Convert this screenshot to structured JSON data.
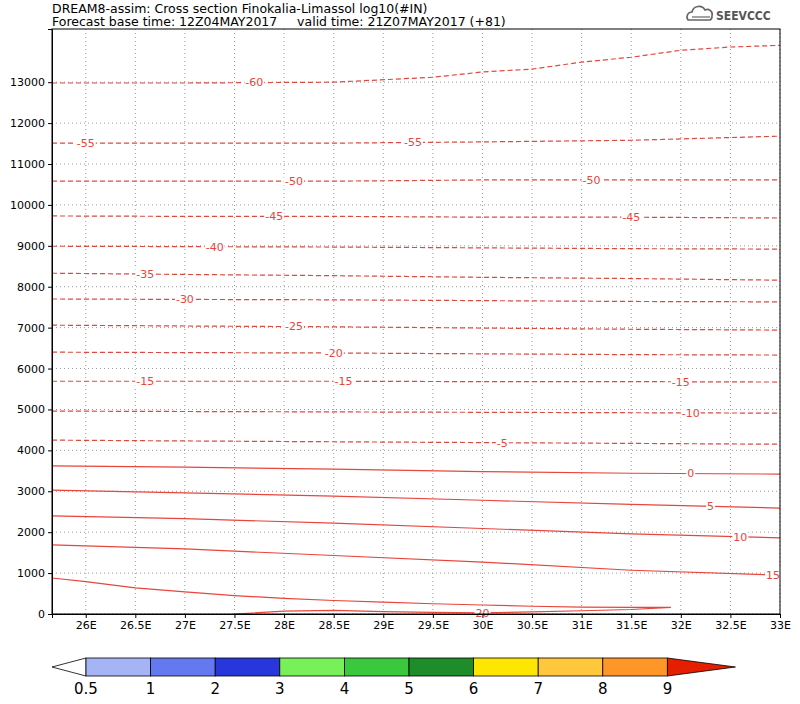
{
  "chart_data": {
    "type": "contour",
    "title": "DREAM8-assim: Cross section Finokalia-Limassol log10(#IN)",
    "subtitle": "Forecast base time: 12Z04MAY2017     valid time: 21Z07MAY2017 (+81)",
    "logo": "SEEVCCC",
    "color": "#e8453c",
    "grid": true,
    "xlim": [
      25.66,
      33
    ],
    "ylim": [
      0,
      14300
    ],
    "xticks": [
      {
        "value": 26,
        "label": "26E"
      },
      {
        "value": 26.5,
        "label": "26.5E"
      },
      {
        "value": 27,
        "label": "27E"
      },
      {
        "value": 27.5,
        "label": "27.5E"
      },
      {
        "value": 28,
        "label": "28E"
      },
      {
        "value": 28.5,
        "label": "28.5E"
      },
      {
        "value": 29,
        "label": "29E"
      },
      {
        "value": 29.5,
        "label": "29.5E"
      },
      {
        "value": 30,
        "label": "30E"
      },
      {
        "value": 30.5,
        "label": "30.5E"
      },
      {
        "value": 31,
        "label": "31E"
      },
      {
        "value": 31.5,
        "label": "31.5E"
      },
      {
        "value": 32,
        "label": "32E"
      },
      {
        "value": 32.5,
        "label": "32.5E"
      },
      {
        "value": 33,
        "label": "33E"
      }
    ],
    "yticks": [
      0,
      1000,
      2000,
      3000,
      4000,
      5000,
      6000,
      7000,
      8000,
      9000,
      10000,
      11000,
      12000,
      13000
    ],
    "contours": [
      {
        "level": -60,
        "line_style": "dashed",
        "x": [
          25.66,
          27,
          28.5,
          29.5,
          30,
          30.5,
          31,
          31.5,
          32,
          32.5,
          33
        ],
        "y": [
          12980,
          12980,
          13000,
          13120,
          13250,
          13320,
          13490,
          13610,
          13780,
          13860,
          13900
        ],
        "label_x": [
          27.7
        ]
      },
      {
        "level": -55,
        "line_style": "dashed",
        "x": [
          25.66,
          27,
          28.5,
          30,
          31.5,
          33
        ],
        "y": [
          11510,
          11510,
          11510,
          11540,
          11580,
          11680
        ],
        "label_x": [
          26,
          29.3
        ]
      },
      {
        "level": -50,
        "line_style": "dashed",
        "x": [
          25.66,
          27,
          28.5,
          30,
          31.5,
          33
        ],
        "y": [
          10580,
          10580,
          10580,
          10610,
          10610,
          10610
        ],
        "label_x": [
          28.1,
          31.1
        ]
      },
      {
        "level": -45,
        "line_style": "dashed",
        "x": [
          25.66,
          27,
          28.5,
          30,
          31.5,
          33
        ],
        "y": [
          9730,
          9720,
          9720,
          9700,
          9700,
          9680
        ],
        "label_x": [
          27.9,
          31.5
        ]
      },
      {
        "level": -40,
        "line_style": "dashed",
        "x": [
          25.66,
          27,
          28.5,
          30,
          31.5,
          33
        ],
        "y": [
          8990,
          8980,
          8970,
          8950,
          8930,
          8920
        ],
        "label_x": [
          27.3
        ]
      },
      {
        "level": -35,
        "line_style": "dashed",
        "x": [
          25.66,
          27,
          28.5,
          30,
          31.5,
          33
        ],
        "y": [
          8330,
          8300,
          8270,
          8230,
          8200,
          8160
        ],
        "label_x": [
          26.6
        ]
      },
      {
        "level": -30,
        "line_style": "dashed",
        "x": [
          25.66,
          27,
          28.5,
          30,
          31.5,
          33
        ],
        "y": [
          7700,
          7690,
          7680,
          7660,
          7640,
          7630
        ],
        "label_x": [
          27
        ]
      },
      {
        "level": -25,
        "line_style": "dashed",
        "x": [
          25.66,
          27,
          28.5,
          30,
          31.5,
          33
        ],
        "y": [
          7060,
          7040,
          7020,
          6990,
          6960,
          6940
        ],
        "label_x": [
          28.1
        ]
      },
      {
        "level": -20,
        "line_style": "dashed",
        "x": [
          25.66,
          27,
          28.5,
          30,
          31.5,
          33
        ],
        "y": [
          6400,
          6390,
          6380,
          6360,
          6340,
          6330
        ],
        "label_x": [
          28.5
        ]
      },
      {
        "level": -15,
        "line_style": "dashed",
        "x": [
          25.66,
          27,
          28.5,
          30,
          31.5,
          33
        ],
        "y": [
          5690,
          5690,
          5690,
          5680,
          5680,
          5670
        ],
        "label_x": [
          26.6,
          28.6,
          32
        ]
      },
      {
        "level": -10,
        "line_style": "dashed",
        "x": [
          25.66,
          27,
          28.5,
          30,
          31.5,
          33
        ],
        "y": [
          4960,
          4950,
          4940,
          4930,
          4920,
          4910
        ],
        "label_x": [
          32.1
        ]
      },
      {
        "level": -5,
        "line_style": "dashed",
        "x": [
          25.66,
          27,
          28.5,
          30,
          31.5,
          33
        ],
        "y": [
          4250,
          4230,
          4210,
          4190,
          4170,
          4150
        ],
        "label_x": [
          30.2
        ]
      },
      {
        "level": 0,
        "line_style": "solid",
        "x": [
          25.66,
          27,
          28.5,
          30,
          31.5,
          33
        ],
        "y": [
          3620,
          3590,
          3540,
          3480,
          3440,
          3420
        ],
        "label_x": [
          32.1
        ]
      },
      {
        "level": 5,
        "line_style": "solid",
        "x": [
          25.66,
          27,
          28.5,
          30,
          31.5,
          33
        ],
        "y": [
          3030,
          2960,
          2880,
          2780,
          2680,
          2590
        ],
        "label_x": [
          32.3
        ]
      },
      {
        "level": 10,
        "line_style": "solid",
        "x": [
          25.66,
          27,
          28.5,
          30,
          31.5,
          33
        ],
        "y": [
          2400,
          2330,
          2220,
          2090,
          1960,
          1860
        ],
        "label_x": [
          32.6
        ]
      },
      {
        "level": 15,
        "line_style": "solid",
        "x": [
          25.66,
          27,
          28.5,
          30,
          31.5,
          33
        ],
        "y": [
          1690,
          1590,
          1430,
          1270,
          1070,
          950
        ],
        "label_x": [
          32.93
        ]
      },
      {
        "level": 20,
        "line_style": "solid",
        "x": [
          25.66,
          26,
          26.5,
          27,
          27.5,
          28,
          28.5,
          29,
          29.5,
          30,
          30.5,
          31,
          31.5,
          31.9,
          31.5,
          31,
          30.5,
          30,
          29.5,
          29,
          28.5,
          28,
          27.5
        ],
        "y": [
          880,
          790,
          640,
          540,
          450,
          380,
          330,
          290,
          250,
          220,
          190,
          170,
          160,
          160,
          110,
          80,
          50,
          30,
          40,
          60,
          90,
          70,
          0
        ],
        "label_x": [
          30
        ]
      }
    ],
    "colorbar": {
      "ticks": [
        0.5,
        1,
        2,
        3,
        4,
        5,
        6,
        7,
        8,
        9
      ],
      "colors": [
        "#ffffff",
        "#a5b4f5",
        "#6478f0",
        "#2837dc",
        "#78f05a",
        "#3cc83c",
        "#1e8c28",
        "#ffe600",
        "#ffc83c",
        "#ff9628",
        "#e61e00"
      ]
    }
  }
}
